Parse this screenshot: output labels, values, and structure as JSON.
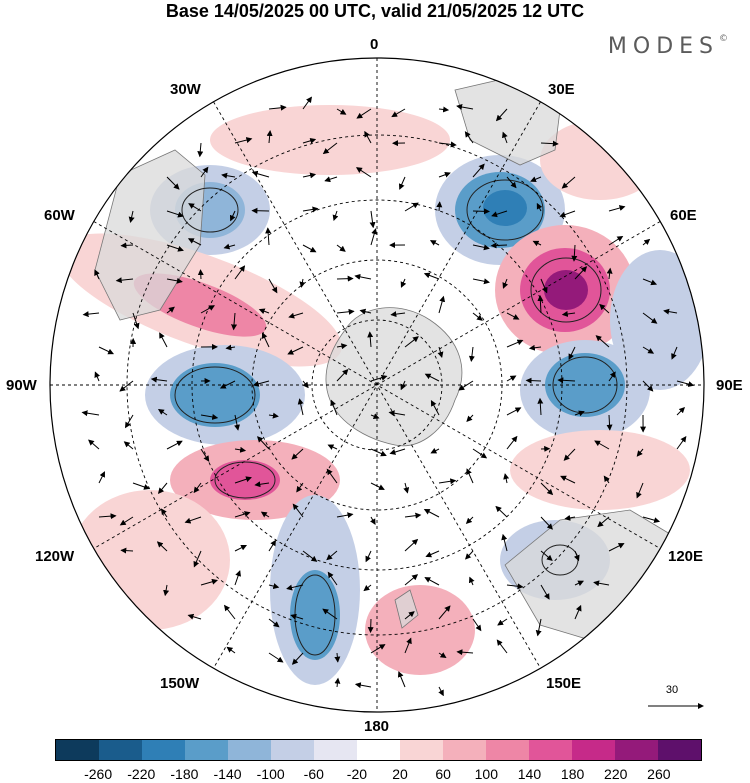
{
  "title": "Base 14/05/2025 00 UTC, valid 21/05/2025 12 UTC",
  "brand": "MODES",
  "brand_mark": "©",
  "longitude_labels": {
    "n0": "0",
    "n30e": "30E",
    "n60e": "60E",
    "n90e": "90E",
    "n120e": "120E",
    "n150e": "150E",
    "n180": "180",
    "n150w": "150W",
    "n120w": "120W",
    "n90w": "90W",
    "n60w": "60W",
    "n30w": "30W"
  },
  "reference_vector": "30",
  "colorbar": {
    "ticks": [
      "-260",
      "-220",
      "-180",
      "-140",
      "-100",
      "-60",
      "-20",
      "20",
      "60",
      "100",
      "140",
      "180",
      "220",
      "260"
    ],
    "colors": [
      "#0d3a5c",
      "#1a5c8c",
      "#2f7fb6",
      "#5a9dc9",
      "#8fb5d9",
      "#c4cfe6",
      "#e6e6f2",
      "#ffffff",
      "#f9d5d5",
      "#f4b0bb",
      "#ee86a6",
      "#e15599",
      "#c62a89",
      "#941a7a",
      "#5e106b"
    ]
  },
  "anomalies": [
    {
      "label": "blue",
      "color": "#2f7fb6"
    },
    {
      "label": "magenta",
      "color": "#941a7a"
    }
  ]
}
